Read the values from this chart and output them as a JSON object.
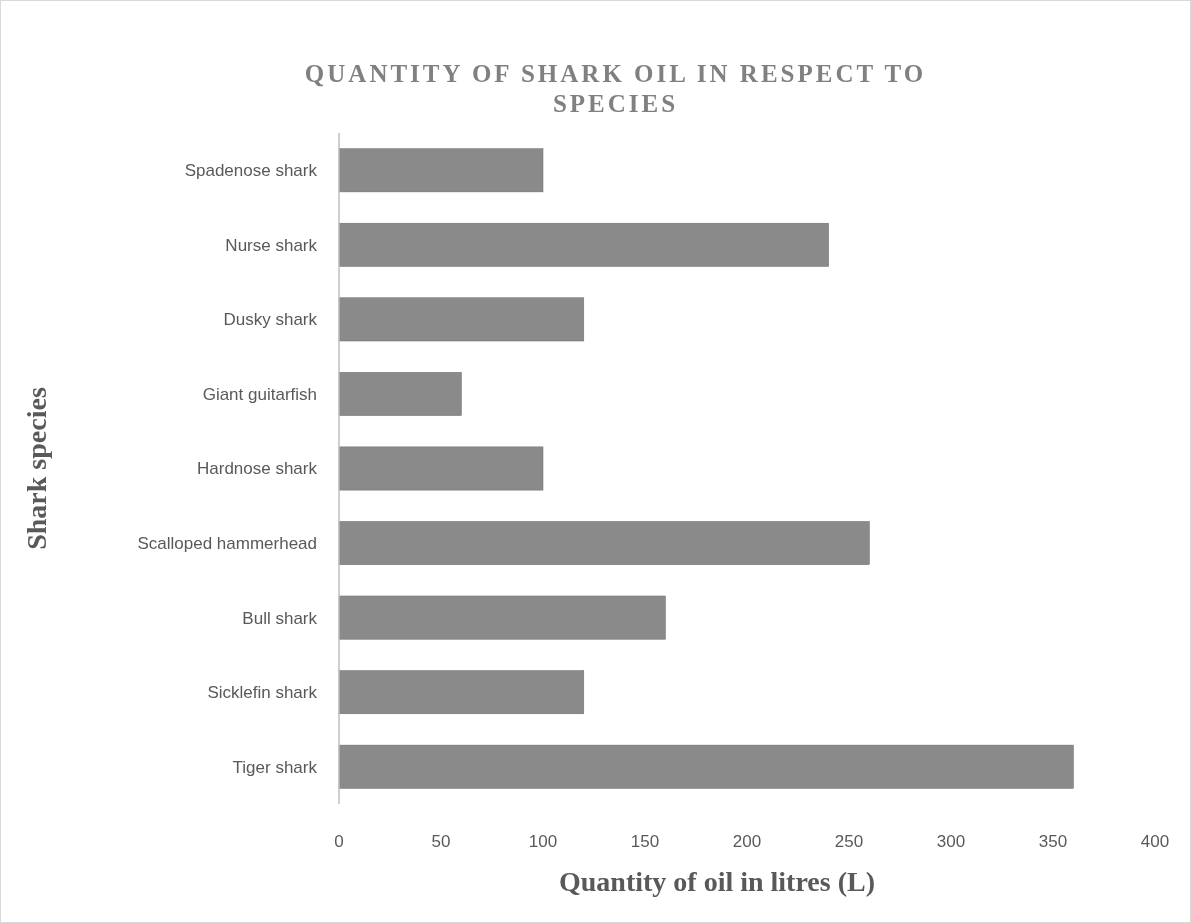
{
  "chart_data": {
    "type": "bar",
    "orientation": "horizontal",
    "title": "QUANTITY OF SHARK OIL IN RESPECT TO SPECIES",
    "xlabel": "Quantity of oil in litres (L)",
    "ylabel": "Shark species",
    "categories": [
      "Spadenose shark",
      "Nurse shark",
      "Dusky shark",
      "Giant guitarfish",
      "Hardnose shark",
      "Scalloped hammerhead",
      "Bull shark",
      "Sicklefin shark",
      "Tiger shark"
    ],
    "values": [
      100,
      240,
      120,
      60,
      100,
      260,
      160,
      120,
      360
    ],
    "color": "#8a8a8a",
    "xlim": [
      0,
      400
    ],
    "xticks": [
      0,
      50,
      100,
      150,
      200,
      250,
      300,
      350,
      400
    ]
  }
}
